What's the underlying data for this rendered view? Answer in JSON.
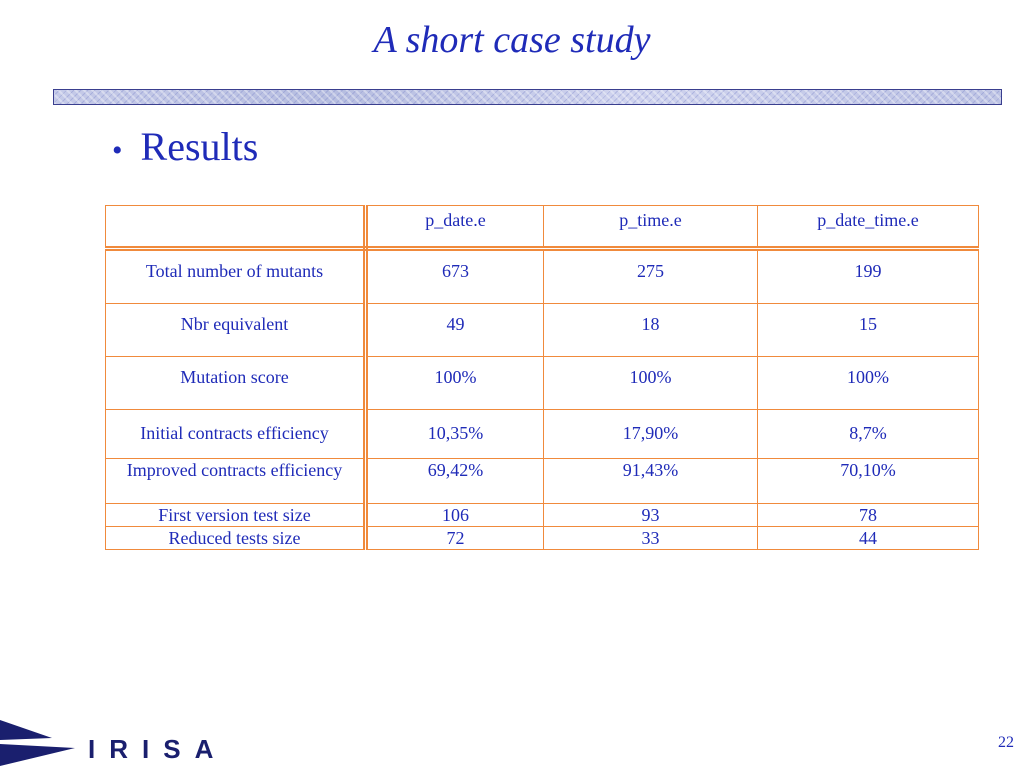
{
  "slide": {
    "title": "A short case study",
    "bullet": "Results",
    "page_number": "22",
    "logo_text": "IRISA"
  },
  "table": {
    "headers": [
      "",
      "p_date.e",
      "p_time.e",
      "p_date_time.e"
    ],
    "rows": [
      {
        "label": "Total number of mutants",
        "values": [
          "673",
          "275",
          "199"
        ],
        "bold_label": false,
        "bold_values": false
      },
      {
        "label": "Nbr equivalent",
        "values": [
          "49",
          "18",
          "15"
        ],
        "bold_label": false,
        "bold_values": false
      },
      {
        "label": "Mutation score",
        "values": [
          "100%",
          "100%",
          "100%"
        ],
        "bold_label": true,
        "bold_values": true
      },
      {
        "label": "Initial contracts efficiency",
        "values": [
          "10,35%",
          "17,90%",
          "8,7%"
        ],
        "bold_label": true,
        "bold_values": true
      },
      {
        "label": "Improved contracts efficiency",
        "values": [
          "69,42%",
          "91,43%",
          "70,10%"
        ],
        "bold_label": true,
        "bold_values": true
      },
      {
        "label": "First version test size",
        "values": [
          "106",
          "93",
          "78"
        ],
        "bold_label": false,
        "bold_values": false
      },
      {
        "label": "Reduced tests size",
        "values": [
          "72",
          "33",
          "44"
        ],
        "bold_label": false,
        "bold_values": true
      }
    ]
  },
  "colors": {
    "text": "#1f2bb8",
    "table_border": "#f08a3c",
    "logo_navy": "#1a1f6e"
  }
}
